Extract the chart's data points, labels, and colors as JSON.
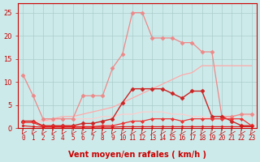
{
  "background_color": "#cdeaea",
  "grid_color": "#aacccc",
  "xlabel": "Vent moyen/en rafales ( km/h )",
  "x_ticks": [
    0,
    1,
    2,
    3,
    4,
    5,
    6,
    7,
    8,
    9,
    10,
    11,
    12,
    13,
    14,
    15,
    16,
    17,
    18,
    19,
    20,
    21,
    22,
    23
  ],
  "ylim": [
    0,
    27
  ],
  "yticks": [
    0,
    5,
    10,
    15,
    20,
    25
  ],
  "series": [
    {
      "name": "rafales_peak",
      "color": "#ee8888",
      "linewidth": 0.9,
      "marker": "D",
      "markersize": 2.5,
      "values": [
        11.5,
        7.0,
        2.0,
        2.0,
        2.0,
        2.0,
        7.0,
        7.0,
        7.0,
        13.0,
        16.0,
        25.0,
        25.0,
        19.5,
        19.5,
        19.5,
        18.5,
        18.5,
        16.5,
        16.5,
        2.5,
        2.5,
        3.0,
        3.0
      ]
    },
    {
      "name": "trend_rising",
      "color": "#ffaaaa",
      "linewidth": 0.9,
      "marker": null,
      "markersize": 0,
      "values": [
        1.5,
        1.5,
        1.5,
        2.0,
        2.5,
        2.5,
        3.0,
        3.5,
        4.0,
        4.5,
        5.5,
        6.5,
        7.5,
        8.5,
        9.5,
        10.5,
        11.5,
        12.0,
        13.5,
        13.5,
        13.5,
        13.5,
        13.5,
        13.5
      ]
    },
    {
      "name": "moyenne_flat",
      "color": "#ffcccc",
      "linewidth": 0.9,
      "marker": null,
      "markersize": 0,
      "values": [
        1.5,
        1.5,
        1.5,
        1.5,
        2.0,
        2.0,
        2.0,
        2.0,
        2.5,
        2.5,
        3.0,
        3.0,
        3.5,
        3.5,
        3.5,
        3.0,
        3.0,
        2.5,
        2.5,
        2.0,
        2.0,
        2.5,
        3.0,
        2.5
      ]
    },
    {
      "name": "rafales_dark",
      "color": "#cc2222",
      "linewidth": 1.0,
      "marker": "D",
      "markersize": 2.5,
      "values": [
        1.5,
        1.5,
        0.5,
        0.5,
        0.5,
        0.5,
        1.0,
        1.0,
        1.5,
        2.0,
        5.5,
        8.5,
        8.5,
        8.5,
        8.5,
        7.5,
        6.5,
        8.0,
        8.0,
        2.5,
        2.5,
        1.5,
        0.5,
        0.5
      ]
    },
    {
      "name": "vent_moyen",
      "color": "#ee3333",
      "linewidth": 0.9,
      "marker": "D",
      "markersize": 2.0,
      "values": [
        1.2,
        1.2,
        0.3,
        0.3,
        0.3,
        0.3,
        0.3,
        0.3,
        0.5,
        0.5,
        1.0,
        1.5,
        1.5,
        2.0,
        2.0,
        2.0,
        1.5,
        2.0,
        2.0,
        2.0,
        2.0,
        2.0,
        2.0,
        0.5
      ]
    },
    {
      "name": "bottom_flat",
      "color": "#dd1111",
      "linewidth": 0.8,
      "marker": "D",
      "markersize": 1.5,
      "values": [
        0.5,
        0.3,
        0.2,
        0.2,
        0.2,
        0.2,
        0.2,
        0.2,
        0.2,
        0.2,
        0.3,
        0.3,
        0.3,
        0.3,
        0.3,
        0.3,
        0.3,
        0.3,
        0.3,
        0.3,
        0.3,
        0.3,
        0.3,
        0.3
      ]
    }
  ],
  "axis_color": "#cc0000",
  "tick_color": "#cc0000",
  "xlabel_color": "#cc0000",
  "xlabel_fontsize": 7,
  "tick_fontsize": 5.5,
  "ytick_fontsize": 6
}
